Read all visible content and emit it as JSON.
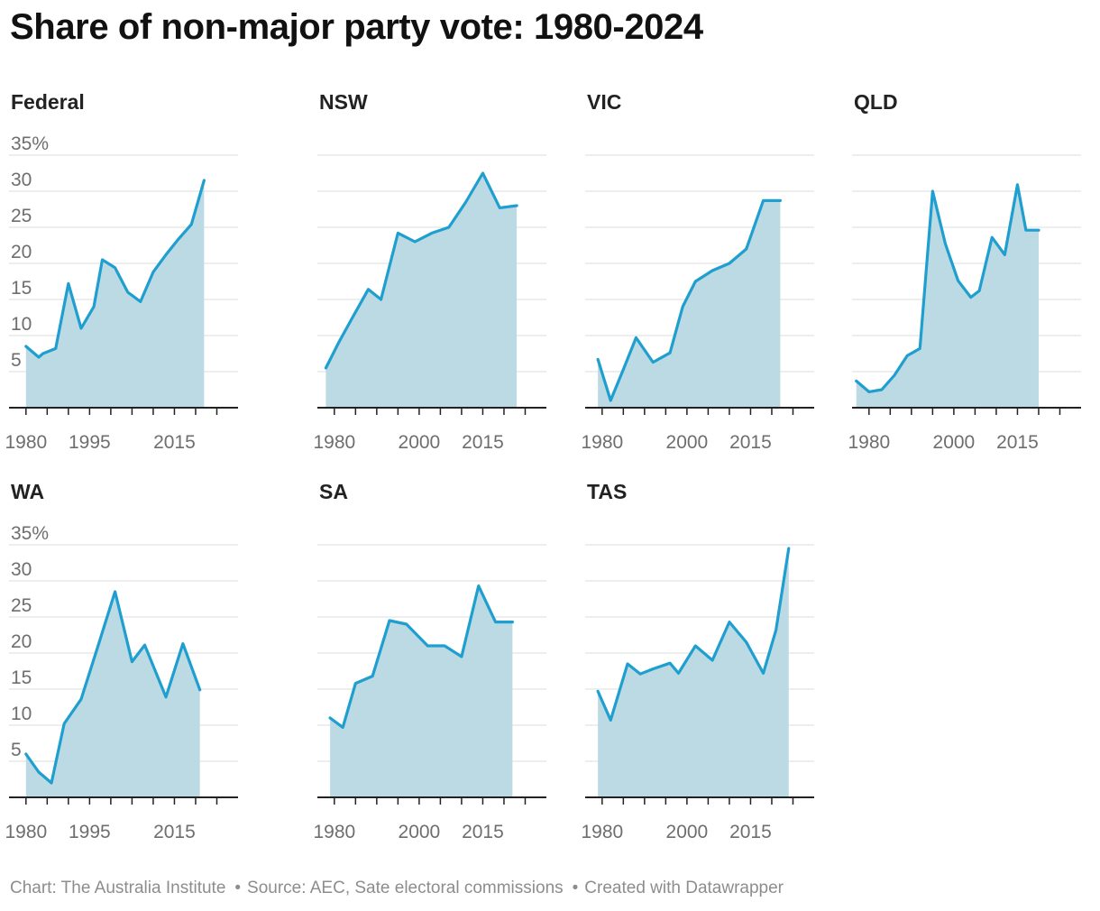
{
  "title": "Share of non-major party vote: 1980-2024",
  "footer": {
    "chart": "Chart: The Australia Institute",
    "source": "Source: AEC, Sate electoral commissions",
    "created": "Created with Datawrapper"
  },
  "colors": {
    "line": "#1f9fcf",
    "area": "#bcdae3",
    "grid": "#dddddd",
    "axis": "#222222",
    "tick_label": "#6e6e6e"
  },
  "chart_data": [
    {
      "type": "area",
      "title": "Federal",
      "y_unit": "%",
      "ylim": [
        0,
        35
      ],
      "xlim": [
        1976,
        2030
      ],
      "y_ticks": [
        5,
        10,
        15,
        20,
        25,
        30,
        35
      ],
      "x_tick_labels": [
        1980,
        1995,
        2015
      ],
      "x_tick_marks": [
        1980,
        1985,
        1990,
        1995,
        2000,
        2005,
        2010,
        2015,
        2020,
        2025
      ],
      "x": [
        1980,
        1983,
        1984,
        1987,
        1990,
        1993,
        1996,
        1998,
        2001,
        2004,
        2007,
        2010,
        2013,
        2016,
        2019,
        2022
      ],
      "y": [
        8.5,
        7,
        7.5,
        8.2,
        17.2,
        11,
        14,
        20.5,
        19.4,
        16,
        14.7,
        18.8,
        21.2,
        23.4,
        25.4,
        31.5
      ]
    },
    {
      "type": "area",
      "title": "NSW",
      "y_unit": "%",
      "ylim": [
        0,
        35
      ],
      "xlim": [
        1976,
        2030
      ],
      "y_ticks": [
        5,
        10,
        15,
        20,
        25,
        30,
        35
      ],
      "x_tick_labels": [
        1980,
        2000,
        2015
      ],
      "x_tick_marks": [
        1980,
        1985,
        1990,
        1995,
        2000,
        2005,
        2010,
        2015,
        2020,
        2025
      ],
      "x": [
        1978,
        1981,
        1984,
        1988,
        1991,
        1995,
        1999,
        2003,
        2007,
        2011,
        2015,
        2019,
        2023
      ],
      "y": [
        5.5,
        9,
        12.2,
        16.4,
        15,
        24.2,
        23,
        24.2,
        25,
        28.5,
        32.5,
        27.7,
        28
      ]
    },
    {
      "type": "area",
      "title": "VIC",
      "y_unit": "%",
      "ylim": [
        0,
        35
      ],
      "xlim": [
        1976,
        2030
      ],
      "y_ticks": [
        5,
        10,
        15,
        20,
        25,
        30,
        35
      ],
      "x_tick_labels": [
        1980,
        2000,
        2015
      ],
      "x_tick_marks": [
        1980,
        1985,
        1990,
        1995,
        2000,
        2005,
        2010,
        2015,
        2020,
        2025
      ],
      "x": [
        1979,
        1982,
        1985,
        1988,
        1992,
        1996,
        1999,
        2002,
        2006,
        2010,
        2014,
        2018,
        2022
      ],
      "y": [
        6.7,
        1,
        5.3,
        9.7,
        6.3,
        7.6,
        14,
        17.5,
        19,
        20,
        22,
        28.7,
        28.7
      ]
    },
    {
      "type": "area",
      "title": "QLD",
      "y_unit": "%",
      "ylim": [
        0,
        35
      ],
      "xlim": [
        1976,
        2030
      ],
      "y_ticks": [
        5,
        10,
        15,
        20,
        25,
        30,
        35
      ],
      "x_tick_labels": [
        1980,
        2000,
        2015
      ],
      "x_tick_marks": [
        1980,
        1985,
        1990,
        1995,
        2000,
        2005,
        2010,
        2015,
        2020,
        2025
      ],
      "x": [
        1977,
        1980,
        1983,
        1986,
        1989,
        1992,
        1995,
        1998,
        2001,
        2004,
        2006,
        2009,
        2012,
        2015,
        2017,
        2020
      ],
      "y": [
        3.7,
        2.2,
        2.5,
        4.5,
        7.2,
        8.2,
        30,
        22.7,
        17.6,
        15.3,
        16.2,
        23.6,
        21.2,
        30.9,
        24.6,
        24.6
      ]
    },
    {
      "type": "area",
      "title": "WA",
      "y_unit": "%",
      "ylim": [
        0,
        35
      ],
      "xlim": [
        1976,
        2030
      ],
      "y_ticks": [
        5,
        10,
        15,
        20,
        25,
        30,
        35
      ],
      "x_tick_labels": [
        1980,
        1995,
        2015
      ],
      "x_tick_marks": [
        1980,
        1985,
        1990,
        1995,
        2000,
        2005,
        2010,
        2015,
        2020,
        2025
      ],
      "x": [
        1980,
        1983,
        1986,
        1989,
        1993,
        1997,
        2001,
        2005,
        2008,
        2013,
        2017,
        2021
      ],
      "y": [
        6,
        3.5,
        2,
        10.2,
        13.6,
        21,
        28.5,
        18.8,
        21.1,
        13.9,
        21.3,
        14.9
      ]
    },
    {
      "type": "area",
      "title": "SA",
      "y_unit": "%",
      "ylim": [
        0,
        35
      ],
      "xlim": [
        1976,
        2030
      ],
      "y_ticks": [
        5,
        10,
        15,
        20,
        25,
        30,
        35
      ],
      "x_tick_labels": [
        1980,
        2000,
        2015
      ],
      "x_tick_marks": [
        1980,
        1985,
        1990,
        1995,
        2000,
        2005,
        2010,
        2015,
        2020,
        2025
      ],
      "x": [
        1979,
        1982,
        1985,
        1989,
        1993,
        1997,
        2002,
        2006,
        2010,
        2014,
        2018,
        2022
      ],
      "y": [
        11,
        9.7,
        15.8,
        16.8,
        24.5,
        24,
        21,
        21,
        19.5,
        29.3,
        24.3,
        24.3
      ]
    },
    {
      "type": "area",
      "title": "TAS",
      "y_unit": "%",
      "ylim": [
        0,
        35
      ],
      "xlim": [
        1976,
        2030
      ],
      "y_ticks": [
        5,
        10,
        15,
        20,
        25,
        30,
        35
      ],
      "x_tick_labels": [
        1980,
        2000,
        2015
      ],
      "x_tick_marks": [
        1980,
        1985,
        1990,
        1995,
        2000,
        2005,
        2010,
        2015,
        2020,
        2025
      ],
      "x": [
        1979,
        1982,
        1986,
        1989,
        1992,
        1996,
        1998,
        2002,
        2006,
        2010,
        2014,
        2018,
        2021,
        2024
      ],
      "y": [
        14.7,
        10.7,
        18.5,
        17.1,
        17.8,
        18.6,
        17.2,
        21,
        19,
        24.3,
        21.5,
        17.2,
        23.2,
        34.5
      ]
    }
  ]
}
